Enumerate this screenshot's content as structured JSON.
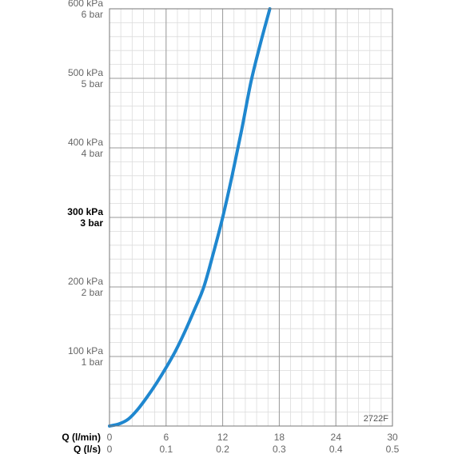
{
  "chart_data": {
    "type": "line",
    "code_label": "2722F",
    "x_axes": [
      {
        "title": "Q (l/min)",
        "ticks": [
          "0",
          "6",
          "12",
          "18",
          "24",
          "30"
        ],
        "range": [
          0,
          30
        ]
      },
      {
        "title": "Q (l/s)",
        "ticks": [
          "0",
          "0.1",
          "0.2",
          "0.3",
          "0.4",
          "0.5"
        ],
        "range": [
          0,
          0.5
        ]
      }
    ],
    "y_axis": {
      "range": [
        0,
        600
      ],
      "ticks": [
        {
          "value": 100,
          "kpa": "100 kPa",
          "bar": "1 bar",
          "bold": false
        },
        {
          "value": 200,
          "kpa": "200 kPa",
          "bar": "2 bar",
          "bold": false
        },
        {
          "value": 300,
          "kpa": "300 kPa",
          "bar": "3 bar",
          "bold": true
        },
        {
          "value": 400,
          "kpa": "400 kPa",
          "bar": "4 bar",
          "bold": false
        },
        {
          "value": 500,
          "kpa": "500 kPa",
          "bar": "5 bar",
          "bold": false
        },
        {
          "value": 600,
          "kpa": "600 kPa",
          "bar": "6 bar",
          "bold": false
        }
      ]
    },
    "grid": {
      "major": true,
      "minor": true,
      "minor_x_step": 1.2,
      "minor_y_step": 20
    },
    "series": [
      {
        "color": "#1f87cf",
        "points": [
          [
            0,
            0
          ],
          [
            1,
            3
          ],
          [
            2,
            10
          ],
          [
            3,
            24
          ],
          [
            4,
            42
          ],
          [
            5,
            62
          ],
          [
            6,
            84
          ],
          [
            7,
            108
          ],
          [
            8,
            136
          ],
          [
            9,
            167
          ],
          [
            10,
            200
          ],
          [
            11,
            248
          ],
          [
            12,
            300
          ],
          [
            13,
            360
          ],
          [
            14,
            425
          ],
          [
            15,
            495
          ],
          [
            16,
            550
          ],
          [
            17,
            600
          ]
        ]
      }
    ]
  }
}
